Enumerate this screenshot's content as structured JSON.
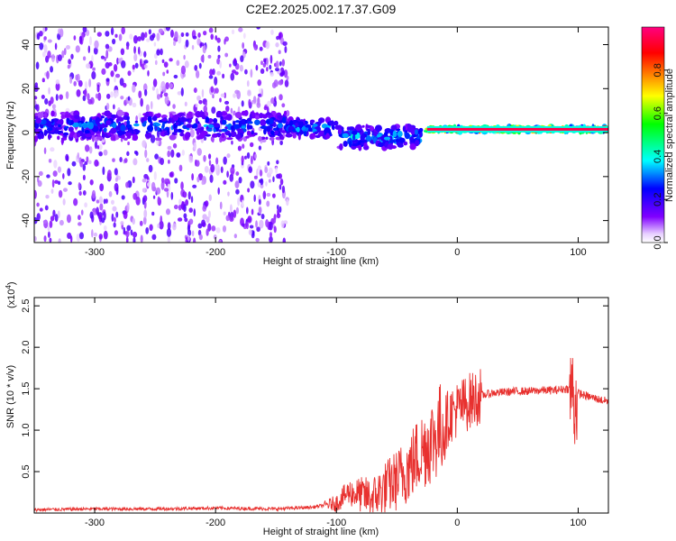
{
  "title": "C2E2.2025.002.17.37.G09",
  "chart_data": [
    {
      "type": "heatmap",
      "title": "C2E2.2025.002.17.37.G09",
      "xlabel": "Height of straight line (km)",
      "ylabel": "Frequency (Hz)",
      "xlim": [
        -350,
        125
      ],
      "ylim": [
        -50,
        48
      ],
      "xticks": [
        -300,
        -200,
        -100,
        0,
        100
      ],
      "yticks": [
        -40,
        -20,
        0,
        20,
        40
      ],
      "colorbar": {
        "label": "Normalized spectral amplitude",
        "range": [
          0,
          1
        ],
        "ticks": [
          0.0,
          0.2,
          0.4,
          0.6,
          0.8
        ],
        "colors": [
          "#ffffff",
          "#8000ff",
          "#0000ff",
          "#00ffff",
          "#00ff00",
          "#ffff00",
          "#ff8000",
          "#ff0000",
          "#ff0080"
        ]
      },
      "features": [
        {
          "x_range": [
            -350,
            -140
          ],
          "freq_center": 3,
          "freq_halfwidth": 6,
          "amplitude": 0.3
        },
        {
          "x_range": [
            -140,
            -100
          ],
          "freq_center": 2,
          "freq_halfwidth": 4,
          "amplitude": 0.35
        },
        {
          "x_range": [
            -100,
            -30
          ],
          "freq_center": -2,
          "freq_halfwidth": 5,
          "amplitude": 0.35
        },
        {
          "x_range": [
            -25,
            125
          ],
          "freq_center": 1.5,
          "freq_halfwidth": 1,
          "amplitude": 0.95
        }
      ]
    },
    {
      "type": "line",
      "xlabel": "Height of straight line (km)",
      "ylabel": "SNR (10 * v/v)",
      "y_multiplier": "(x10^4)",
      "y_multiplier_base": "(x10",
      "y_multiplier_exp": "4",
      "y_multiplier_close": ")",
      "xlim": [
        -350,
        125
      ],
      "ylim": [
        0,
        2.6
      ],
      "xticks": [
        -300,
        -200,
        -100,
        0,
        100
      ],
      "yticks": [
        0.5,
        1.0,
        1.5,
        2.0,
        2.5
      ],
      "series": [
        {
          "color": "#e8312f",
          "x": [
            -350,
            -300,
            -250,
            -200,
            -150,
            -120,
            -100,
            -90,
            -80,
            -70,
            -60,
            -50,
            -40,
            -30,
            -20,
            -15,
            -10,
            -5,
            0,
            10,
            20,
            30,
            40,
            50,
            60,
            70,
            80,
            90,
            95,
            97,
            100,
            105,
            110,
            115,
            120,
            125
          ],
          "y": [
            0.04,
            0.05,
            0.05,
            0.06,
            0.05,
            0.07,
            0.12,
            0.25,
            0.22,
            0.18,
            0.3,
            0.4,
            0.55,
            0.75,
            0.9,
            1.0,
            1.1,
            1.2,
            1.25,
            1.35,
            1.42,
            1.45,
            1.46,
            1.47,
            1.47,
            1.48,
            1.48,
            1.5,
            1.5,
            1.3,
            1.45,
            1.42,
            1.4,
            1.38,
            1.36,
            1.35
          ]
        }
      ]
    }
  ]
}
